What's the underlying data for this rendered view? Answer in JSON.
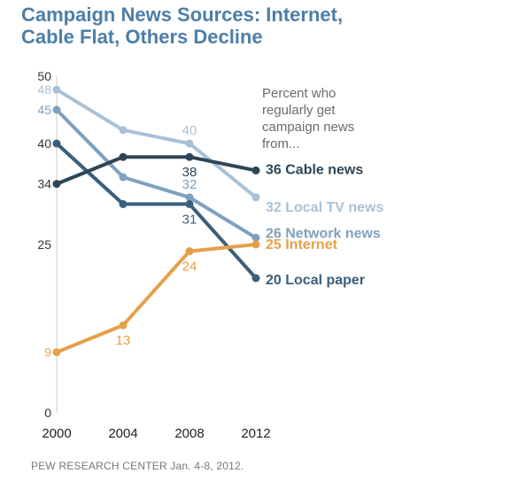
{
  "title_lines": [
    "Campaign News Sources: Internet,",
    "Cable Flat, Others Decline"
  ],
  "note_lines": [
    "Percent who",
    "regularly get",
    "campaign news",
    "from..."
  ],
  "source": "PEW RESEARCH CENTER Jan. 4-8, 2012.",
  "chart_data": {
    "type": "line",
    "x": [
      2000,
      2004,
      2008,
      2012
    ],
    "ylim": [
      0,
      50
    ],
    "xlabel": "",
    "ylabel": "",
    "y_ticks": [
      {
        "value": 50,
        "label": "50",
        "color": "#333333"
      },
      {
        "value": 48,
        "label": "48",
        "color": "#a9c1d6"
      },
      {
        "value": 45,
        "label": "45",
        "color": "#7fa1bf"
      },
      {
        "value": 40,
        "label": "40",
        "color": "#333333"
      },
      {
        "value": 34,
        "label": "34",
        "color": "#333333"
      },
      {
        "value": 25,
        "label": "25",
        "color": "#333333"
      },
      {
        "value": 9,
        "label": "9",
        "color": "#e6a04a"
      },
      {
        "value": 0,
        "label": "0",
        "color": "#333333"
      }
    ],
    "series": [
      {
        "name": "Local TV news",
        "color": "#a9c1d6",
        "values": [
          48,
          42,
          40,
          32
        ],
        "end_label": "32 Local TV news"
      },
      {
        "name": "Network news",
        "color": "#7fa1bf",
        "values": [
          45,
          35,
          32,
          26
        ],
        "end_label": "26 Network news"
      },
      {
        "name": "Local paper",
        "color": "#3a5f7c",
        "values": [
          40,
          31,
          31,
          20
        ],
        "end_label": "20 Local paper"
      },
      {
        "name": "Cable news",
        "color": "#2e4556",
        "values": [
          34,
          38,
          38,
          36
        ],
        "end_label": "36 Cable news"
      },
      {
        "name": "Internet",
        "color": "#e6a04a",
        "values": [
          9,
          13,
          24,
          25
        ],
        "end_label": "25 Internet"
      }
    ],
    "annotations": [
      {
        "text": "40",
        "x": 2008,
        "y": 40,
        "color": "#a9c1d6",
        "pos": "above"
      },
      {
        "text": "38",
        "x": 2008,
        "y": 38,
        "color": "#2e4556",
        "pos": "below"
      },
      {
        "text": "32",
        "x": 2008,
        "y": 32,
        "color": "#7fa1bf",
        "pos": "above"
      },
      {
        "text": "31",
        "x": 2008,
        "y": 31,
        "color": "#3a5f7c",
        "pos": "below"
      },
      {
        "text": "24",
        "x": 2008,
        "y": 24,
        "color": "#e6a04a",
        "pos": "below"
      },
      {
        "text": "13",
        "x": 2004,
        "y": 13,
        "color": "#e6a04a",
        "pos": "below"
      }
    ]
  }
}
